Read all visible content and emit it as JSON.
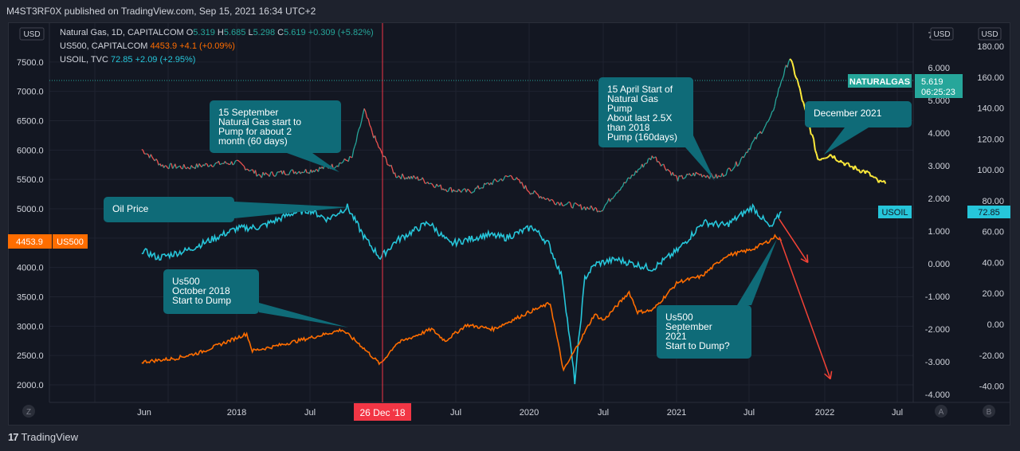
{
  "publisher": "M4ST3RF0X published on TradingView.com, Sep 15, 2021 16:34 UTC+2",
  "brand": "TradingView",
  "currency": "USD",
  "legend": [
    {
      "name": "Natural Gas, 1D, CAPITALCOM",
      "o_label": "O",
      "o": "5.319",
      "h_label": "H",
      "h": "5.685",
      "l_label": "L",
      "l": "5.298",
      "c_label": "C",
      "c": "5.619",
      "chg": "+0.309 (+5.82%)"
    },
    {
      "name": "US500, CAPITALCOM",
      "value": "4453.9",
      "chg": "+4.1 (+0.09%)"
    },
    {
      "name": "USOIL, TVC",
      "value": "72.85",
      "chg": "+2.09 (+2.95%)"
    }
  ],
  "badges": {
    "us500_value": "4453.9",
    "us500_name": "US500",
    "natgas_name": "NATURALGAS",
    "natgas_value": "5.619",
    "natgas_countdown": "06:25:23",
    "usoil_name": "USOIL",
    "usoil_value": "72.85",
    "date_label": "26 Dec '18"
  },
  "axis_buttons": {
    "z": "Z",
    "a": "A",
    "b": "B"
  },
  "colors": {
    "natgas_up": "#26a69a",
    "natgas_down": "#ef5350",
    "natgas_recent": "#ffeb3b",
    "usoil": "#26c6da",
    "us500": "#ff6d00",
    "callout": "#0f6b78",
    "arrow": "#f44336",
    "date_line": "#f23645"
  },
  "annotations": [
    {
      "id": "september",
      "lines": [
        "15 September",
        "Natural Gas start to",
        "Pump for about 2",
        "month (60 days)"
      ]
    },
    {
      "id": "oil",
      "lines": [
        "Oil Price"
      ]
    },
    {
      "id": "us500-2018",
      "lines": [
        "Us500",
        "October 2018",
        "Start to Dump"
      ]
    },
    {
      "id": "april",
      "lines": [
        "15 April Start of",
        "Natural Gas",
        "Pump",
        "About last 2.5X",
        "than 2018",
        "Pump (160days)"
      ]
    },
    {
      "id": "december",
      "lines": [
        "December 2021"
      ]
    },
    {
      "id": "us500-2021",
      "lines": [
        "Us500",
        "September",
        "2021",
        "Start to Dump?"
      ]
    }
  ],
  "chart_data": {
    "type": "line",
    "x_ticks": [
      "Jun",
      "2018",
      "Jul",
      "Jul",
      "2020",
      "Jul",
      "2021",
      "Jul",
      "2022",
      "Jul"
    ],
    "left_axis": {
      "label": "USD",
      "ticks": [
        "7500.0",
        "7000.0",
        "6500.0",
        "6000.0",
        "5500.0",
        "5000.0",
        "4500.0",
        "4000.0",
        "3500.0",
        "3000.0",
        "2500.0",
        "2000.0"
      ],
      "range": [
        1800,
        8000
      ]
    },
    "mid_axis": {
      "label": "USD",
      "ticks": [
        "7.000",
        "6.000",
        "5.000",
        "4.000",
        "3.000",
        "2.000",
        "1.000",
        "0.000",
        "-1.000",
        "-2.000",
        "-3.000",
        "-4.000"
      ],
      "range": [
        -4.3,
        7.3
      ]
    },
    "right_axis": {
      "label": "USD",
      "ticks": [
        "180.00",
        "160.00",
        "140.00",
        "120.00",
        "100.00",
        "80.00",
        "60.00",
        "40.00",
        "20.00",
        "0.00",
        "-20.00",
        "-40.00"
      ],
      "range": [
        -47,
        190
      ]
    },
    "series": [
      {
        "name": "Natural Gas, 1D, CAPITALCOM",
        "axis": "mid",
        "x": [
          "2017-05-10",
          "2017-07-01",
          "2017-09-01",
          "2017-11-01",
          "2018-01-01",
          "2018-03-01",
          "2018-05-01",
          "2018-07-01",
          "2018-09-01",
          "2018-10-15",
          "2018-11-14",
          "2018-12-01",
          "2018-12-26",
          "2019-02-01",
          "2019-04-01",
          "2019-06-01",
          "2019-08-01",
          "2019-10-01",
          "2019-11-15",
          "2020-01-01",
          "2020-03-01",
          "2020-05-01",
          "2020-06-25",
          "2020-08-01",
          "2020-10-01",
          "2020-11-01",
          "2021-01-01",
          "2021-02-15",
          "2021-04-15",
          "2021-06-01",
          "2021-07-15",
          "2021-08-20",
          "2021-09-15",
          "2021-10-06",
          "2021-10-25",
          "2021-11-15",
          "2021-12-01",
          "2021-12-15",
          "2022-01-15",
          "2022-03-01",
          "2022-04-15",
          "2022-05-15",
          "2022-06-01"
        ],
        "y": [
          3.5,
          3.0,
          2.95,
          3.05,
          3.1,
          2.7,
          2.8,
          2.85,
          3.0,
          3.25,
          4.7,
          4.1,
          3.4,
          2.7,
          2.6,
          2.3,
          2.2,
          2.5,
          2.7,
          2.2,
          1.9,
          1.75,
          1.65,
          2.2,
          2.95,
          3.3,
          2.6,
          2.75,
          2.65,
          3.1,
          3.85,
          4.45,
          5.6,
          6.3,
          5.6,
          4.6,
          3.9,
          3.2,
          3.35,
          3.0,
          2.8,
          2.5,
          2.45
        ]
      },
      {
        "name": "USOIL, TVC",
        "axis": "right",
        "x": [
          "2017-05-10",
          "2017-06-20",
          "2017-09-01",
          "2017-11-01",
          "2018-01-01",
          "2018-03-01",
          "2018-05-20",
          "2018-07-01",
          "2018-08-15",
          "2018-10-03",
          "2018-11-15",
          "2018-12-24",
          "2019-02-01",
          "2019-04-23",
          "2019-06-15",
          "2019-09-15",
          "2019-11-01",
          "2020-01-06",
          "2020-02-15",
          "2020-03-20",
          "2020-04-20",
          "2020-05-15",
          "2020-06-10",
          "2020-08-01",
          "2020-10-30",
          "2021-01-01",
          "2021-03-05",
          "2021-05-01",
          "2021-07-06",
          "2021-08-20",
          "2021-09-15"
        ],
        "y": [
          48,
          43,
          48,
          55,
          62,
          63,
          72,
          74,
          68,
          76,
          56,
          43,
          54,
          66,
          52,
          58,
          56,
          63,
          52,
          30,
          -37,
          30,
          39,
          42,
          36,
          48,
          66,
          64,
          76,
          62,
          73
        ]
      },
      {
        "name": "US500, CAPITALCOM",
        "axis": "left",
        "x": [
          "2017-05-10",
          "2017-08-01",
          "2017-10-01",
          "2018-01-26",
          "2018-02-09",
          "2018-04-01",
          "2018-06-01",
          "2018-08-01",
          "2018-09-20",
          "2018-11-01",
          "2018-12-24",
          "2019-02-01",
          "2019-04-30",
          "2019-06-03",
          "2019-07-26",
          "2019-10-01",
          "2020-01-01",
          "2020-02-19",
          "2020-03-23",
          "2020-06-08",
          "2020-07-01",
          "2020-09-02",
          "2020-09-23",
          "2020-10-30",
          "2021-01-01",
          "2021-03-01",
          "2021-05-01",
          "2021-07-01",
          "2021-08-15",
          "2021-09-02",
          "2021-09-15"
        ],
        "y": [
          2390,
          2450,
          2550,
          2870,
          2580,
          2650,
          2750,
          2850,
          2940,
          2700,
          2350,
          2700,
          2950,
          2750,
          3020,
          2950,
          3250,
          3390,
          2240,
          3200,
          3100,
          3580,
          3240,
          3270,
          3750,
          3850,
          4200,
          4300,
          4450,
          4540,
          4453
        ]
      }
    ],
    "projections": [
      {
        "from": [
          "2021-09-10",
          68
        ],
        "to": [
          "2021-11-20",
          40
        ],
        "axis": "right"
      },
      {
        "from": [
          "2021-09-10",
          4520
        ],
        "to": [
          "2022-01-15",
          2100
        ],
        "axis": "left"
      }
    ]
  }
}
